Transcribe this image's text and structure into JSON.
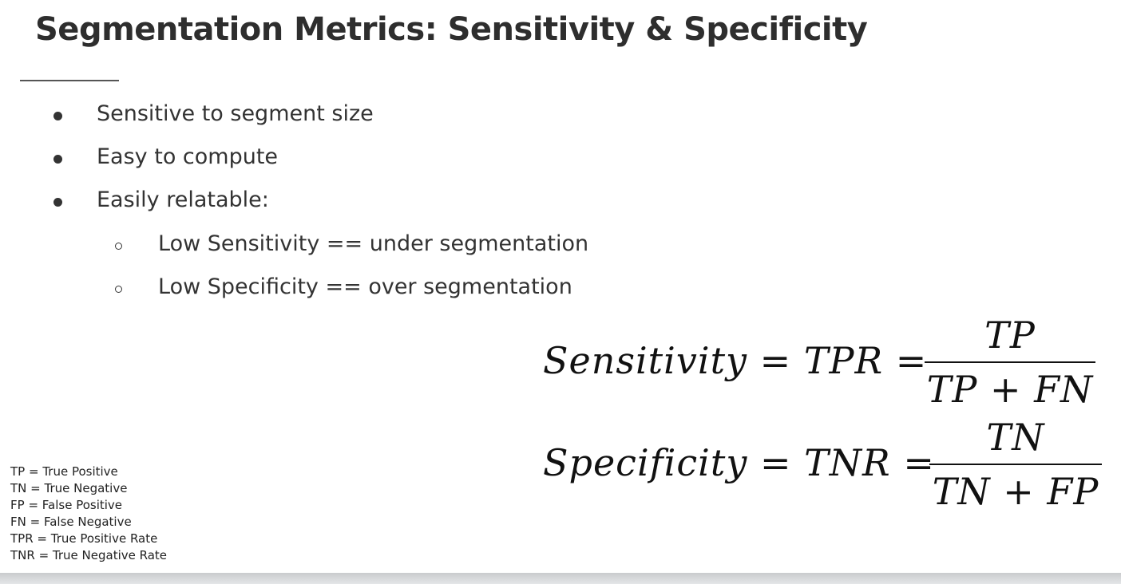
{
  "title": "Segmentation Metrics: Sensitivity & Specificity",
  "bullets": [
    "Sensitive to segment size",
    "Easy to compute",
    "Easily relatable:"
  ],
  "sub_bullets": [
    "Low Sensitivity == under segmentation",
    "Low Specificity == over segmentation"
  ],
  "formulas": [
    {
      "lhs": "Sensitivity = TPR =",
      "numerator": "TP",
      "denominator": "TP + FN"
    },
    {
      "lhs": "Specificity = TNR =",
      "numerator": "TN",
      "denominator": "TN + FP"
    }
  ],
  "legend": [
    "TP = True Positive",
    "TN = True Negative",
    "FP = False Positive",
    "FN = False Negative",
    "TPR = True Positive Rate",
    "TNR = True Negative Rate"
  ],
  "colors": {
    "text": "#333333",
    "background": "#ffffff"
  }
}
